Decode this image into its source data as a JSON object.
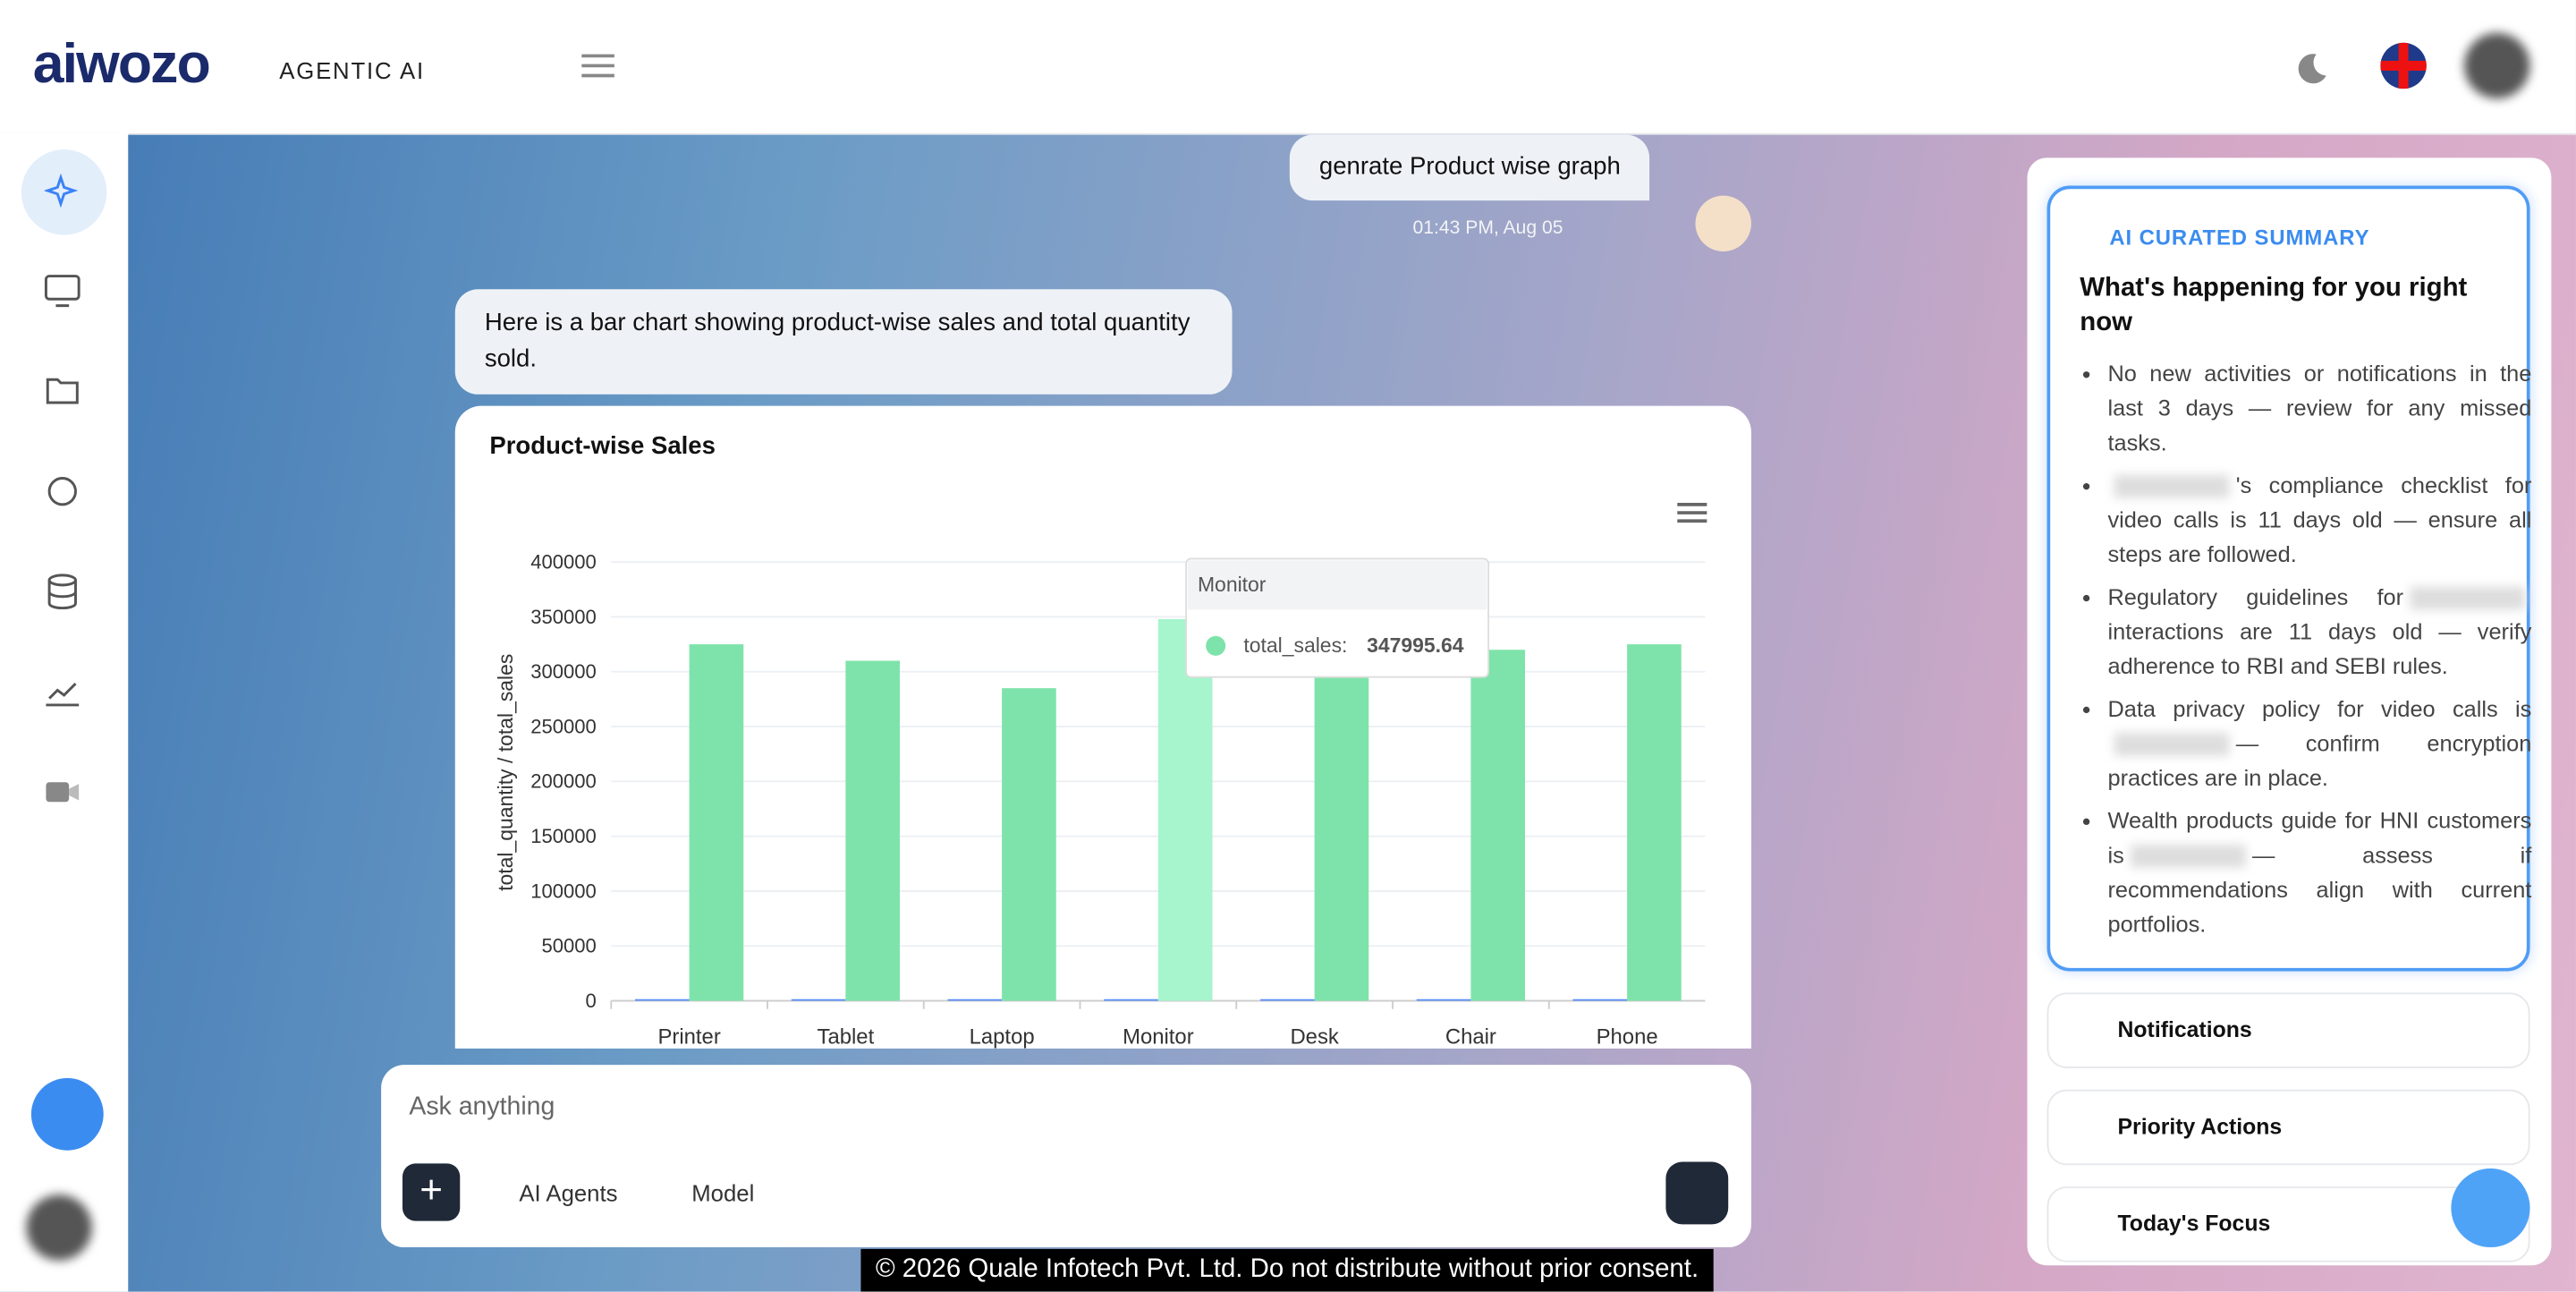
{
  "header": {
    "brand": "aiwozo",
    "tagline": "AGENTIC AI"
  },
  "chat": {
    "user_message": "genrate Product wise graph",
    "timestamp": "01:43 PM, Aug 05",
    "bot_message": "Here is a bar chart showing product-wise sales and total quantity sold."
  },
  "chart_data": {
    "type": "bar",
    "title": "Product-wise Sales",
    "y_label": "total_quantity / total_sales",
    "categories": [
      "Printer",
      "Tablet",
      "Laptop",
      "Monitor",
      "Desk",
      "Chair",
      "Phone"
    ],
    "series": [
      {
        "name": "total_quantity",
        "color": "#5b8ff9",
        "values": [
          1500,
          1500,
          1500,
          1500,
          1500,
          1500,
          1500
        ]
      },
      {
        "name": "total_sales",
        "color": "#7ee3aa",
        "values": [
          325000,
          310000,
          285000,
          347995.64,
          300000,
          320000,
          325000
        ]
      }
    ],
    "ylim": [
      0,
      400000
    ],
    "yticks": [
      0,
      50000,
      100000,
      150000,
      200000,
      250000,
      300000,
      350000,
      400000
    ],
    "grid": true,
    "tooltip": {
      "label": "total_sales:"
    }
  },
  "composer": {
    "placeholder": "Ask anything",
    "buttons": [
      "AI Agents",
      "Model"
    ]
  },
  "summary": {
    "label": "AI CURATED SUMMARY",
    "heading": "What's happening for you right now",
    "items": [
      {
        "text": "No new activities or notifications in the last 3 days — review for any missed tasks."
      },
      {
        "after": "'s compliance checklist for video calls is 11 days old — ensure all steps are followed."
      },
      {
        "before": "Regulatory guidelines for",
        "after": "interactions are 11 days old — verify adherence to RBI and SEBI rules."
      },
      {
        "before": "Data privacy policy for video calls is",
        "after": "— confirm encryption practices are in place."
      },
      {
        "before": "Wealth products guide for HNI customers is",
        "after": "— assess if recommendations align with current portfolios."
      }
    ]
  },
  "sections": [
    "Notifications",
    "Priority Actions",
    "Today's Focus"
  ],
  "footer": "© 2026 Quale Infotech Pvt. Ltd. Do not distribute without prior consent."
}
